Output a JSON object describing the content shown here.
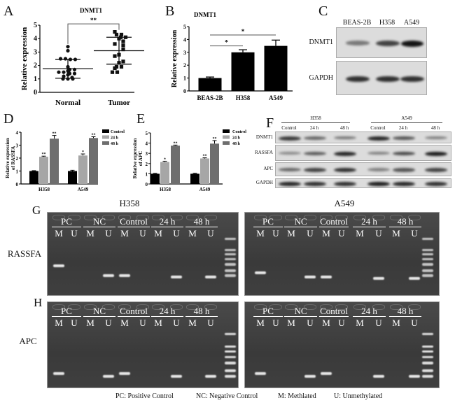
{
  "panels": {
    "A": "A",
    "B": "B",
    "C": "C",
    "D": "D",
    "E": "E",
    "F": "F",
    "G": "G",
    "H": "H"
  },
  "chart_data": [
    {
      "id": "A",
      "type": "scatter",
      "title": "DNMT1",
      "ylabel": "Relative expression",
      "ylim": [
        0,
        5
      ],
      "yticks": [
        0,
        1,
        2,
        3,
        4,
        5
      ],
      "categories": [
        "Normal",
        "Tumor"
      ],
      "series": [
        {
          "category": "Normal",
          "marker": "circle",
          "values": [
            3.4,
            3.1,
            2.5,
            2.5,
            2.45,
            2.45,
            1.9,
            1.7,
            1.7,
            1.6,
            1.5,
            1.5,
            1.5,
            1.4,
            1.4,
            1.3,
            1.2,
            1.1,
            1.0,
            1.0,
            1.0
          ],
          "mean": 1.75,
          "sd": 0.7
        },
        {
          "category": "Tumor",
          "marker": "square",
          "values": [
            4.5,
            4.3,
            4.3,
            4.1,
            4.1,
            4.0,
            3.8,
            3.6,
            3.5,
            3.2,
            2.8,
            2.7,
            2.3,
            2.2,
            1.9,
            1.9,
            1.8,
            1.5,
            1.5
          ],
          "mean": 3.1,
          "sd": 1.0
        }
      ],
      "significance": [
        {
          "from": "Normal",
          "to": "Tumor",
          "label": "**"
        }
      ]
    },
    {
      "id": "B",
      "type": "bar",
      "title": "DNMT1",
      "ylabel": "Relative expression",
      "ylim": [
        0,
        5
      ],
      "yticks": [
        0,
        1,
        2,
        3,
        4,
        5
      ],
      "categories": [
        "BEAS-2B",
        "H358",
        "A549"
      ],
      "values": [
        1.0,
        3.0,
        3.5
      ],
      "errors": [
        0.08,
        0.2,
        0.45
      ],
      "color": "#000000",
      "significance": [
        {
          "from": "BEAS-2B",
          "to": "H358",
          "level": 3.5,
          "label": "*"
        },
        {
          "from": "BEAS-2B",
          "to": "A549",
          "level": 4.35,
          "label": "*"
        }
      ]
    },
    {
      "id": "D",
      "type": "bar",
      "ylabel": "Relative expression of RASSFA",
      "ylim": [
        0,
        4
      ],
      "yticks": [
        0,
        1,
        2,
        3,
        4
      ],
      "categories": [
        "H358",
        "A549"
      ],
      "legend": "right",
      "series": [
        {
          "name": "Control",
          "color": "#000000",
          "values": [
            1.0,
            1.0
          ],
          "errors": [
            0.03,
            0.06
          ],
          "marks": [
            "",
            ""
          ]
        },
        {
          "name": "24 h",
          "color": "#a6a6a6",
          "values": [
            2.1,
            2.2
          ],
          "errors": [
            0.05,
            0.12
          ],
          "marks": [
            "**",
            "*"
          ]
        },
        {
          "name": "48 h",
          "color": "#6e6e6e",
          "values": [
            3.5,
            3.55
          ],
          "errors": [
            0.25,
            0.1
          ],
          "marks": [
            "**",
            "**"
          ]
        }
      ]
    },
    {
      "id": "E",
      "type": "bar",
      "ylabel": "Relative expression of APC",
      "ylim": [
        0,
        5
      ],
      "yticks": [
        0,
        1,
        2,
        3,
        4,
        5
      ],
      "categories": [
        "H358",
        "A549"
      ],
      "legend": "right",
      "series": [
        {
          "name": "Control",
          "color": "#000000",
          "values": [
            1.0,
            1.0
          ],
          "errors": [
            0.05,
            0.06
          ],
          "marks": [
            "",
            ""
          ]
        },
        {
          "name": "24 h",
          "color": "#a6a6a6",
          "values": [
            2.15,
            2.5
          ],
          "errors": [
            0.08,
            0.06
          ],
          "marks": [
            "*",
            "**"
          ]
        },
        {
          "name": "48 h",
          "color": "#6e6e6e",
          "values": [
            3.75,
            3.95
          ],
          "errors": [
            0.06,
            0.3
          ],
          "marks": [
            "**",
            "**"
          ]
        }
      ]
    }
  ],
  "blotC": {
    "columns": [
      "BEAS-2B",
      "H358",
      "A549"
    ],
    "rows": [
      {
        "label": "DNMT1",
        "intensity": [
          0.45,
          0.75,
          1.0
        ]
      },
      {
        "label": "GAPDH",
        "intensity": [
          0.85,
          0.85,
          0.85
        ]
      }
    ]
  },
  "blotF": {
    "groups": [
      "H358",
      "A549"
    ],
    "conditions": [
      "Control",
      "24 h",
      "48 h",
      "Control",
      "24 h",
      "48 h"
    ],
    "rows": [
      {
        "label": "DNMT1",
        "intensity": [
          0.8,
          0.55,
          0.45,
          0.9,
          0.65,
          0.4
        ]
      },
      {
        "label": "RASSFA",
        "intensity": [
          0.35,
          0.6,
          0.9,
          0.4,
          0.7,
          0.95
        ]
      },
      {
        "label": "APC",
        "intensity": [
          0.55,
          0.75,
          0.85,
          0.4,
          0.65,
          0.75
        ]
      },
      {
        "label": "GAPDH",
        "intensity": [
          0.9,
          0.85,
          0.85,
          0.95,
          0.9,
          0.85
        ]
      }
    ]
  },
  "gels": {
    "cell_lines": [
      "H358",
      "A549"
    ],
    "genes": [
      "RASSFA",
      "APC"
    ],
    "groups": [
      "PC",
      "NC",
      "Control",
      "24 h",
      "48 h"
    ],
    "lanes": [
      "M",
      "U"
    ],
    "bands": {
      "RASSFA": [
        "M",
        "U",
        "M",
        "U",
        "U"
      ],
      "APC": [
        "M",
        "U",
        "M",
        "U",
        "U"
      ]
    }
  },
  "legend_caption": [
    "PC: Positive Control",
    "NC: Negative Control",
    "M: Methlated",
    "U: Unmethylated"
  ]
}
